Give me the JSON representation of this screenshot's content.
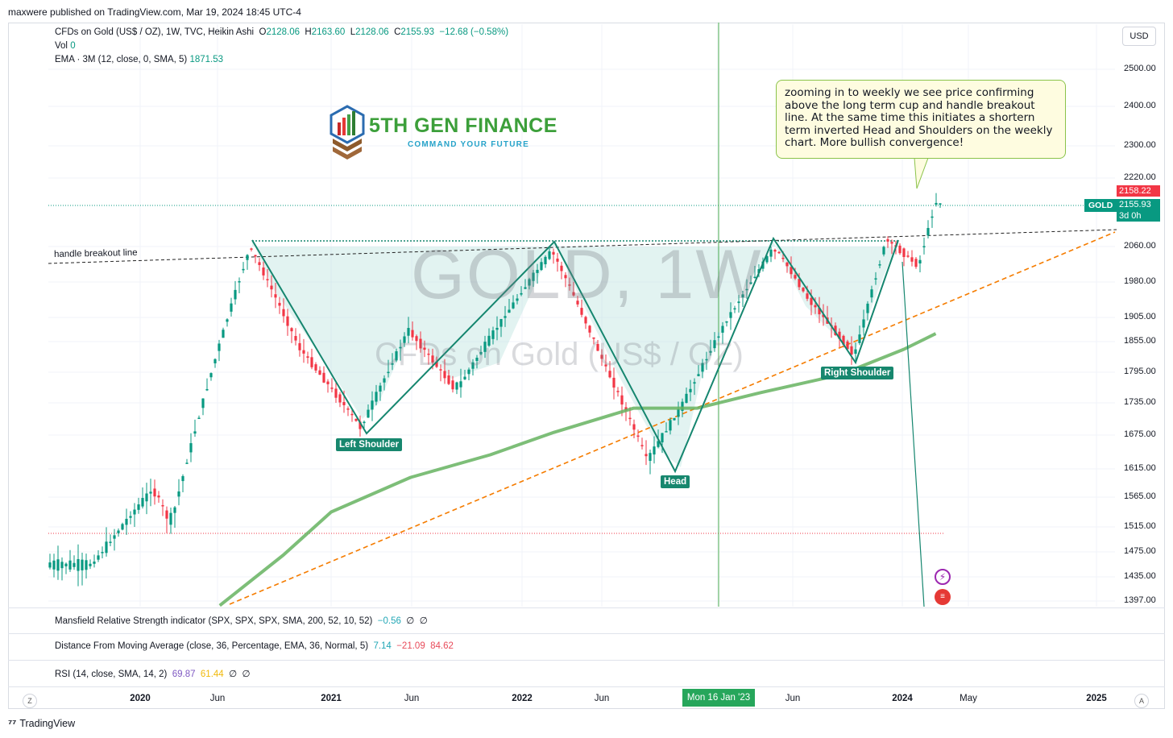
{
  "header": {
    "published": "maxwere published on TradingView.com, Mar 19, 2024 18:45 UTC-4"
  },
  "legend": {
    "symbol": "CFDs on Gold (US$ / OZ), 1W, TVC, Heikin Ashi",
    "o_label": "O",
    "o_value": "2128.06",
    "h_label": "H",
    "h_value": "2163.60",
    "l_label": "L",
    "l_value": "2128.06",
    "c_label": "C",
    "c_value": "2155.93",
    "change": "−12.68 (−0.58%)",
    "vol_label": "Vol",
    "vol_value": "0",
    "ema_label": "EMA · 3M (12, close, 0, SMA, 5)",
    "ema_value": "1871.53"
  },
  "toolbar": {
    "currency": "USD"
  },
  "brand": {
    "name": "5TH GEN FINANCE",
    "tagline": "COMMAND YOUR FUTURE"
  },
  "watermark": {
    "line1": "GOLD, 1W",
    "line2": "CFDs on Gold (US$ / OZ)"
  },
  "annotation": {
    "text": "zooming in to weekly we see price confirming above the long term cup and handle breakout line.  At the same time this initiates a shortern term inverted Head and Shoulders on the weekly chart.  More bullish convergence!"
  },
  "labels": {
    "handle_breakout": "handle breakout line",
    "left_shoulder": "Left Shoulder",
    "head": "Head",
    "right_shoulder": "Right Shoulder"
  },
  "price_tags": {
    "symbol": "GOLD",
    "high": "2158.22",
    "last": "2155.93",
    "countdown": "3d 0h"
  },
  "indicators": {
    "mansfield_label": "Mansfield Relative Strength indicator (SPX, SPX, SPX, SMA, 200, 52, 10, 52)",
    "mansfield_value": "−0.56",
    "mansfield_v2": "∅",
    "mansfield_v3": "∅",
    "dfma_label": "Distance From Moving Average (close, 36, Percentage, EMA, 36, Normal, 5)",
    "dfma_v1": "7.14",
    "dfma_v2": "−21.09",
    "dfma_v3": "84.62",
    "rsi_label": "RSI (14, close, SMA, 14, 2)",
    "rsi_v1": "69.87",
    "rsi_v2": "61.44",
    "rsi_v3": "∅",
    "rsi_v4": "∅"
  },
  "footer": {
    "tv_brand": "TradingView",
    "z_button": "Z",
    "a_button": "A"
  },
  "colors": {
    "up": "#089981",
    "down": "#f23645",
    "ema": "#66b360",
    "trend": "#f57c00",
    "pattern": "#15866f"
  },
  "chart_data": {
    "type": "line",
    "title": "CFDs on Gold (US$ / OZ), 1W, TVC, Heikin Ashi",
    "y_ticks": [
      "2500.00",
      "2400.00",
      "2300.00",
      "2220.00",
      "2060.00",
      "1980.00",
      "1905.00",
      "1855.00",
      "1795.00",
      "1735.00",
      "1675.00",
      "1615.00",
      "1565.00",
      "1515.00",
      "1475.00",
      "1435.00",
      "1397.00"
    ],
    "x_ticks": [
      "2020",
      "Jun",
      "2021",
      "Jun",
      "2022",
      "Jun",
      "Mon 16 Jan '23",
      "Jun",
      "2024",
      "May",
      "2025"
    ],
    "x_highlight": "Mon 16 Jan '23",
    "series": [
      {
        "name": "EMA · 3M (12, close, 0, SMA, 5)",
        "x": [
          "2020-06",
          "2020-10",
          "2021-01",
          "2021-06",
          "2021-11",
          "2022-03",
          "2022-08",
          "2022-12",
          "2023-04",
          "2023-09",
          "2024-01",
          "2024-03"
        ],
        "values": [
          1390,
          1470,
          1540,
          1600,
          1640,
          1680,
          1725,
          1725,
          1755,
          1790,
          1840,
          1871.53
        ]
      },
      {
        "name": "price",
        "x": [
          "2019-10",
          "2020-02",
          "2020-03",
          "2020-08",
          "2020-11",
          "2021-03",
          "2021-06",
          "2021-09",
          "2022-03",
          "2022-06",
          "2022-09",
          "2022-11",
          "2023-02",
          "2023-05",
          "2023-07",
          "2023-10",
          "2023-12",
          "2024-02",
          "2024-03"
        ],
        "values": [
          1450,
          1580,
          1520,
          2060,
          1850,
          1690,
          1880,
          1760,
          2050,
          1830,
          1630,
          1720,
          1900,
          2060,
          1950,
          1830,
          2080,
          2020,
          2155.93
        ]
      }
    ],
    "pattern": {
      "left_shoulder_low": 1680,
      "head_low": 1615,
      "right_shoulder_low": 1810,
      "neckline": 2060
    },
    "last_price": 2155.93,
    "high": 2158.22
  }
}
